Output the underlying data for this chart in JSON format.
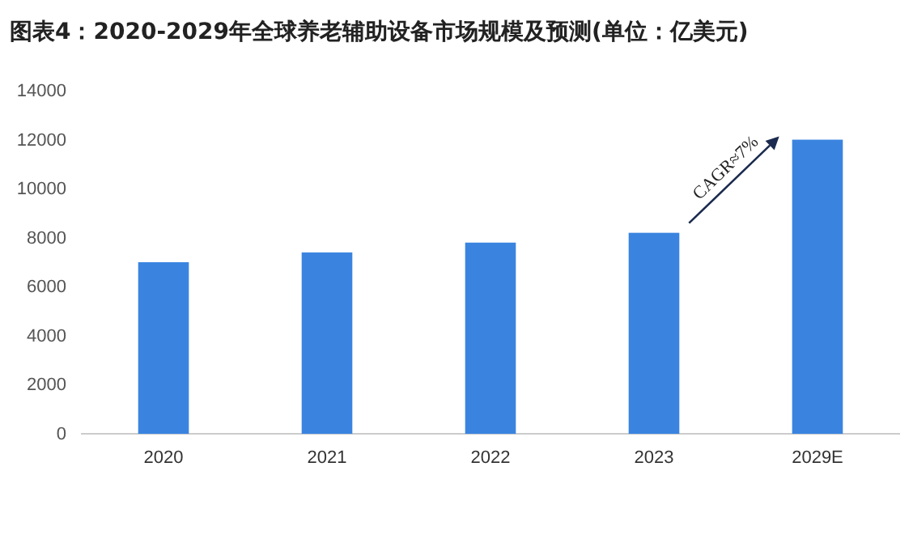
{
  "chart_data": {
    "type": "bar",
    "title": "图表4：2020-2029年全球养老辅助设备市场规模及预测(单位：亿美元)",
    "categories": [
      "2020",
      "2021",
      "2022",
      "2023",
      "2029E"
    ],
    "values": [
      7000,
      7400,
      7800,
      8200,
      12000
    ],
    "color": "#3a84e0",
    "ylim": [
      0,
      14000
    ],
    "yticks": [
      0,
      2000,
      4000,
      6000,
      8000,
      10000,
      12000,
      14000
    ],
    "grid": false,
    "annotations": [
      "CAGR≈7%"
    ]
  }
}
